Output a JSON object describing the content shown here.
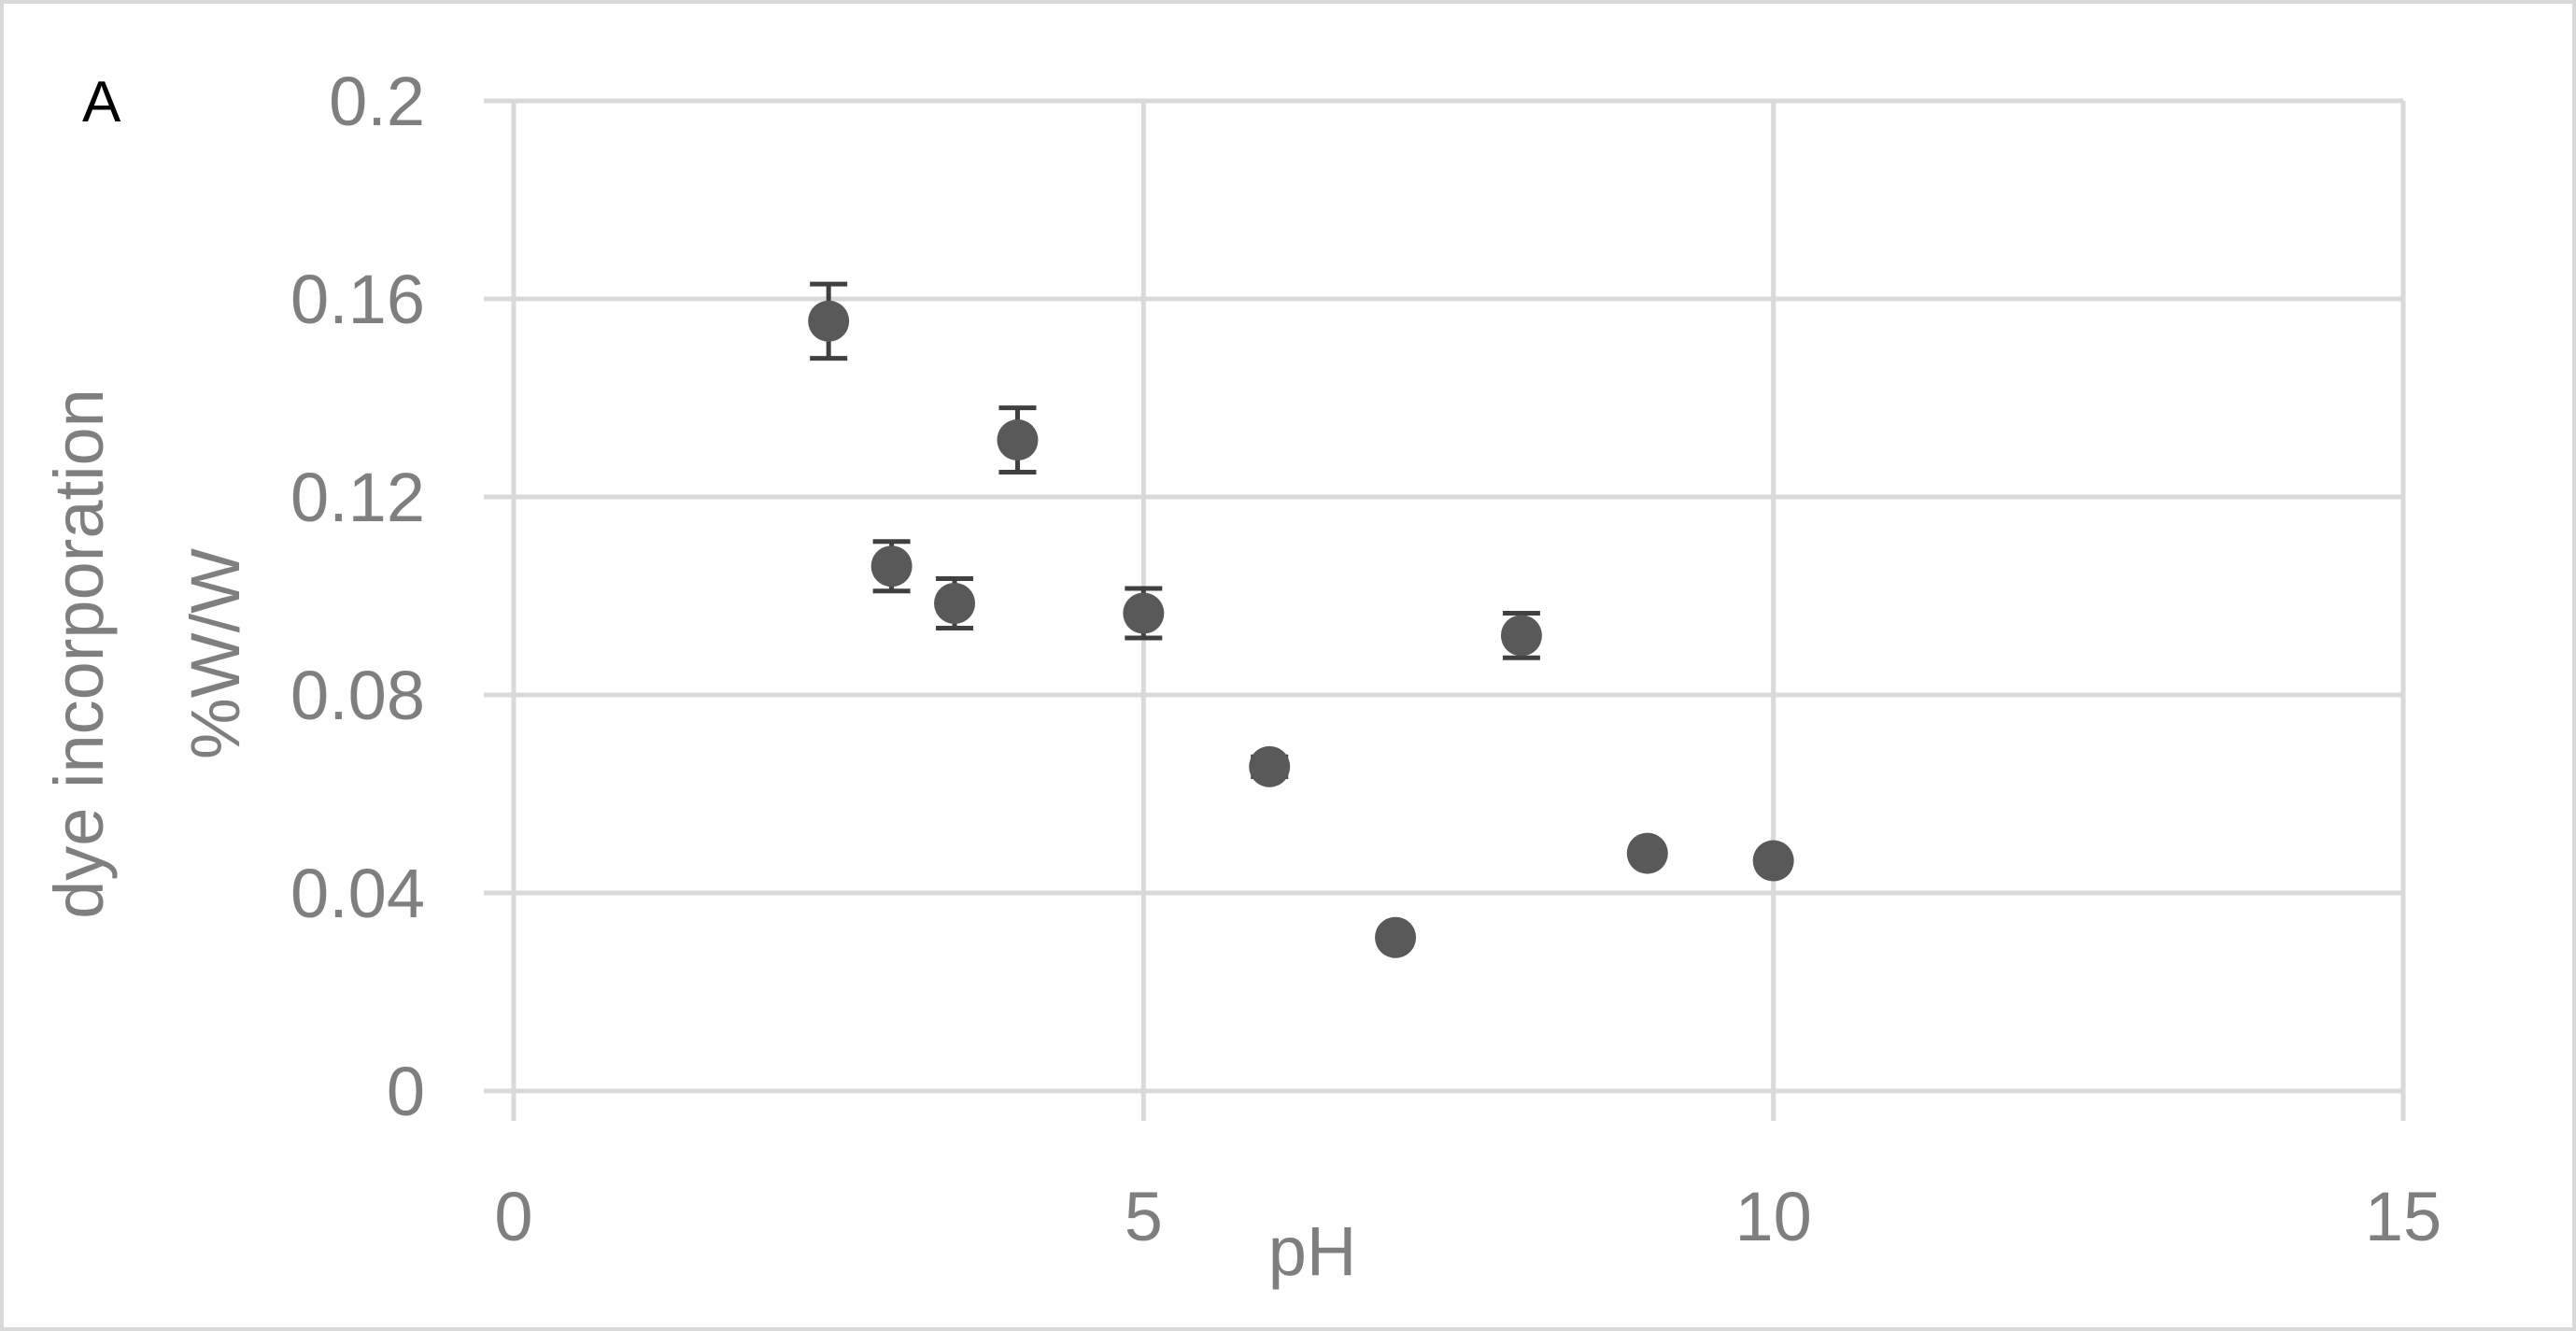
{
  "panel_label": "A",
  "chart_data": {
    "type": "scatter",
    "xlabel": "pH",
    "ylabel_lines": [
      "dye incorporation",
      "%W/W"
    ],
    "xlim": [
      0,
      15
    ],
    "ylim": [
      0,
      0.2
    ],
    "x_ticks": [
      0,
      5,
      10,
      15
    ],
    "x_tick_labels": [
      "0",
      "5",
      "10",
      "15"
    ],
    "y_ticks": [
      0,
      0.04,
      0.08,
      0.12,
      0.16,
      0.2
    ],
    "y_tick_labels": [
      "0",
      "0.04",
      "0.08",
      "0.12",
      "0.16",
      "0.2"
    ],
    "grid": true,
    "legend": "none",
    "points": [
      {
        "x": 2.5,
        "y": 0.1555,
        "err": 0.0075
      },
      {
        "x": 3.0,
        "y": 0.106,
        "err": 0.005
      },
      {
        "x": 3.5,
        "y": 0.0985,
        "err": 0.005
      },
      {
        "x": 4.0,
        "y": 0.1315,
        "err": 0.0065
      },
      {
        "x": 5.0,
        "y": 0.0965,
        "err": 0.005
      },
      {
        "x": 6.0,
        "y": 0.0655,
        "err": 0.002
      },
      {
        "x": 7.0,
        "y": 0.031,
        "err": 0
      },
      {
        "x": 8.0,
        "y": 0.092,
        "err": 0.0045
      },
      {
        "x": 9.0,
        "y": 0.048,
        "err": 0
      },
      {
        "x": 10.0,
        "y": 0.0465,
        "err": 0
      }
    ],
    "colors": {
      "marker": "#595959",
      "error_bar": "#404040",
      "grid": "#d9d9d9",
      "axis_text": "#7f7f7f",
      "frame": "#d9d9d9"
    }
  }
}
